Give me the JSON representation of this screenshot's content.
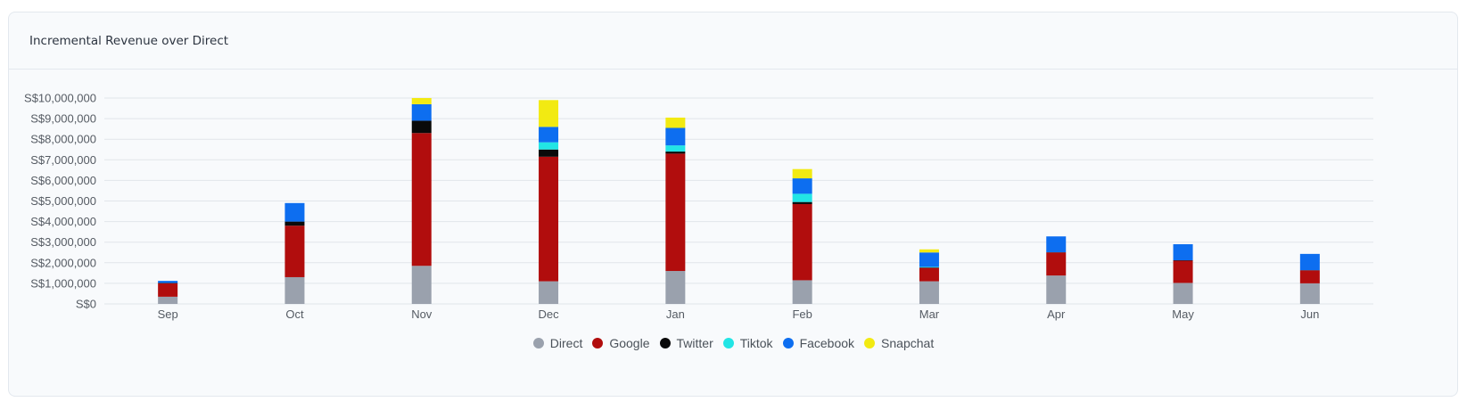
{
  "card": {
    "title": "Incremental Revenue over Direct"
  },
  "colors": {
    "gridline": "#e1e5ea",
    "axis_text": "#555b63",
    "card_bg": "#f8fafc"
  },
  "chart_data": {
    "type": "bar",
    "stacked": true,
    "title": "Incremental Revenue over Direct",
    "xlabel": "",
    "ylabel": "",
    "categories": [
      "Sep",
      "Oct",
      "Nov",
      "Dec",
      "Jan",
      "Feb",
      "Mar",
      "Apr",
      "May",
      "Jun"
    ],
    "y_ticks": [
      0,
      1000000,
      2000000,
      3000000,
      4000000,
      5000000,
      6000000,
      7000000,
      8000000,
      9000000,
      10000000
    ],
    "y_tick_labels": [
      "S$0",
      "S$1,000,000",
      "S$2,000,000",
      "S$3,000,000",
      "S$4,000,000",
      "S$5,000,000",
      "S$6,000,000",
      "S$7,000,000",
      "S$8,000,000",
      "S$9,000,000",
      "S$10,000,000"
    ],
    "ylim": [
      0,
      10000000
    ],
    "grid": true,
    "legend_position": "bottom",
    "series": [
      {
        "name": "Direct",
        "color": "#9aa1ad",
        "values": [
          350000,
          1300000,
          1850000,
          1100000,
          1600000,
          1150000,
          1100000,
          1380000,
          1020000,
          1000000
        ]
      },
      {
        "name": "Google",
        "color": "#b10d0d",
        "values": [
          650000,
          2500000,
          6450000,
          6050000,
          5700000,
          3700000,
          650000,
          1120000,
          1080000,
          630000
        ]
      },
      {
        "name": "Twitter",
        "color": "#0a0a0a",
        "values": [
          20000,
          200000,
          600000,
          350000,
          100000,
          100000,
          20000,
          10000,
          20000,
          10000
        ]
      },
      {
        "name": "Tiktok",
        "color": "#22e5e5",
        "values": [
          0,
          0,
          0,
          350000,
          300000,
          400000,
          30000,
          0,
          0,
          0
        ]
      },
      {
        "name": "Facebook",
        "color": "#0d6ef0",
        "values": [
          100000,
          900000,
          800000,
          750000,
          850000,
          750000,
          700000,
          770000,
          780000,
          790000
        ]
      },
      {
        "name": "Snapchat",
        "color": "#f2ea12",
        "values": [
          0,
          0,
          300000,
          1300000,
          500000,
          450000,
          150000,
          0,
          0,
          0
        ]
      }
    ]
  }
}
